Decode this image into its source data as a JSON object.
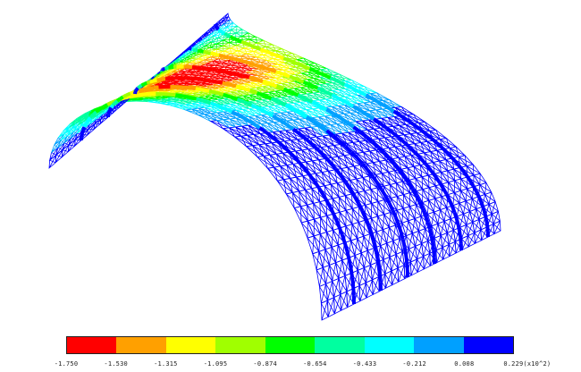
{
  "legend": {
    "colors": [
      "#ff0000",
      "#ffa000",
      "#ffff00",
      "#a0ff00",
      "#00ff00",
      "#00ffa0",
      "#00ffff",
      "#00a0ff",
      "#0000ff"
    ],
    "tick_labels": [
      "-1.750",
      "-1.530",
      "-1.315",
      "-1.095",
      "-0.874",
      "-0.654",
      "-0.433",
      "-0.212",
      "0.008",
      "0.229(x10^2)"
    ]
  }
}
